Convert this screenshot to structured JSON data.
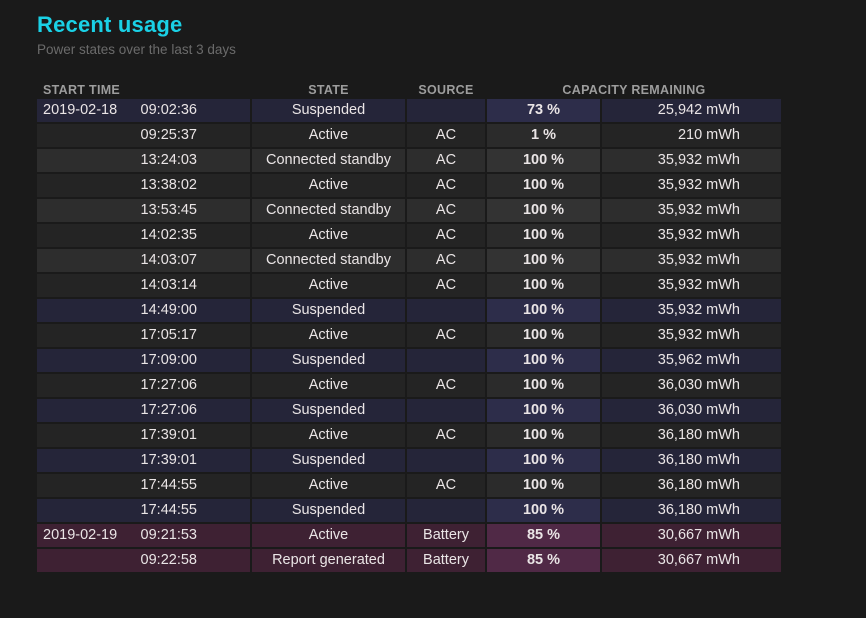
{
  "header": {
    "title": "Recent usage",
    "subtitle": "Power states over the last 3 days"
  },
  "table": {
    "columns": [
      "START TIME",
      "STATE",
      "SOURCE",
      "CAPACITY REMAINING"
    ],
    "rows": [
      {
        "date": "2019-02-18",
        "time": "09:02:36",
        "state": "Suspended",
        "source": "",
        "percent": "73 %",
        "mwh": "25,942 mWh",
        "kind": "suspended"
      },
      {
        "date": "",
        "time": "09:25:37",
        "state": "Active",
        "source": "AC",
        "percent": "1 %",
        "mwh": "210 mWh",
        "kind": "active"
      },
      {
        "date": "",
        "time": "13:24:03",
        "state": "Connected standby",
        "source": "AC",
        "percent": "100 %",
        "mwh": "35,932 mWh",
        "kind": "standby"
      },
      {
        "date": "",
        "time": "13:38:02",
        "state": "Active",
        "source": "AC",
        "percent": "100 %",
        "mwh": "35,932 mWh",
        "kind": "active"
      },
      {
        "date": "",
        "time": "13:53:45",
        "state": "Connected standby",
        "source": "AC",
        "percent": "100 %",
        "mwh": "35,932 mWh",
        "kind": "standby"
      },
      {
        "date": "",
        "time": "14:02:35",
        "state": "Active",
        "source": "AC",
        "percent": "100 %",
        "mwh": "35,932 mWh",
        "kind": "active"
      },
      {
        "date": "",
        "time": "14:03:07",
        "state": "Connected standby",
        "source": "AC",
        "percent": "100 %",
        "mwh": "35,932 mWh",
        "kind": "standby"
      },
      {
        "date": "",
        "time": "14:03:14",
        "state": "Active",
        "source": "AC",
        "percent": "100 %",
        "mwh": "35,932 mWh",
        "kind": "active"
      },
      {
        "date": "",
        "time": "14:49:00",
        "state": "Suspended",
        "source": "",
        "percent": "100 %",
        "mwh": "35,932 mWh",
        "kind": "suspended"
      },
      {
        "date": "",
        "time": "17:05:17",
        "state": "Active",
        "source": "AC",
        "percent": "100 %",
        "mwh": "35,932 mWh",
        "kind": "active"
      },
      {
        "date": "",
        "time": "17:09:00",
        "state": "Suspended",
        "source": "",
        "percent": "100 %",
        "mwh": "35,962 mWh",
        "kind": "suspended"
      },
      {
        "date": "",
        "time": "17:27:06",
        "state": "Active",
        "source": "AC",
        "percent": "100 %",
        "mwh": "36,030 mWh",
        "kind": "active"
      },
      {
        "date": "",
        "time": "17:27:06",
        "state": "Suspended",
        "source": "",
        "percent": "100 %",
        "mwh": "36,030 mWh",
        "kind": "suspended"
      },
      {
        "date": "",
        "time": "17:39:01",
        "state": "Active",
        "source": "AC",
        "percent": "100 %",
        "mwh": "36,180 mWh",
        "kind": "active"
      },
      {
        "date": "",
        "time": "17:39:01",
        "state": "Suspended",
        "source": "",
        "percent": "100 %",
        "mwh": "36,180 mWh",
        "kind": "suspended"
      },
      {
        "date": "",
        "time": "17:44:55",
        "state": "Active",
        "source": "AC",
        "percent": "100 %",
        "mwh": "36,180 mWh",
        "kind": "active"
      },
      {
        "date": "",
        "time": "17:44:55",
        "state": "Suspended",
        "source": "",
        "percent": "100 %",
        "mwh": "36,180 mWh",
        "kind": "suspended"
      },
      {
        "date": "2019-02-19",
        "time": "09:21:53",
        "state": "Active",
        "source": "Battery",
        "percent": "85 %",
        "mwh": "30,667 mWh",
        "kind": "battery"
      },
      {
        "date": "",
        "time": "09:22:58",
        "state": "Report generated",
        "source": "Battery",
        "percent": "85 %",
        "mwh": "30,667 mWh",
        "kind": "battery"
      }
    ]
  },
  "colors": {
    "page-bg": "#1a1a1a",
    "accent": "#1ad1e6",
    "subtitle": "#6b6b6b",
    "header-text": "#9d9d9d",
    "cell-text": "#eae5e6",
    "row-active": "#242424",
    "row-active-pct": "#2b2b2b",
    "row-standby": "#2d2d2d",
    "row-standby-pct": "#333333",
    "row-suspended": "#252539",
    "row-suspended-pct": "#2d2d4a",
    "row-battery": "#3e2133",
    "row-battery-pct": "#502946"
  }
}
